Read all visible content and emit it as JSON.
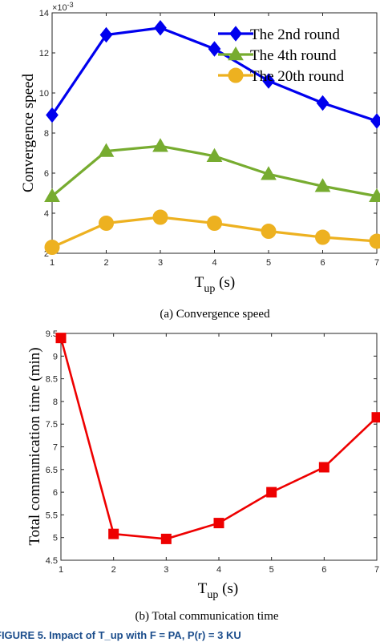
{
  "chart_data": [
    {
      "type": "line",
      "caption": "(a)  Convergence speed",
      "xlabel": "T",
      "xlabel_sub": "up",
      "xlabel_unit": " (s)",
      "ylabel": "Convergence speed",
      "y_exponent": "×10",
      "y_exponent_power": "-3",
      "x": [
        1,
        2,
        3,
        4,
        5,
        6,
        7
      ],
      "xlim": [
        1,
        7
      ],
      "ylim": [
        2,
        14
      ],
      "xticks": [
        "1",
        "2",
        "3",
        "4",
        "5",
        "6",
        "7"
      ],
      "yticks": [
        2,
        4,
        6,
        8,
        10,
        12,
        14
      ],
      "yticklabels": [
        "2",
        "4",
        "6",
        "8",
        "10",
        "12",
        "14"
      ],
      "legend_position": "top-right",
      "grid": false,
      "series": [
        {
          "name": "The 2nd round",
          "values": [
            8.9,
            12.9,
            13.25,
            12.2,
            10.6,
            9.5,
            8.6
          ],
          "color": "#0000ee",
          "marker": "diamond"
        },
        {
          "name": "The 4th round",
          "values": [
            4.85,
            7.1,
            7.35,
            6.85,
            5.95,
            5.35,
            4.85
          ],
          "color": "#77ac30",
          "marker": "triangle"
        },
        {
          "name": "The 20th round",
          "values": [
            2.3,
            3.5,
            3.8,
            3.5,
            3.1,
            2.8,
            2.6
          ],
          "color": "#edb120",
          "marker": "circle"
        }
      ]
    },
    {
      "type": "line",
      "caption": "(b)  Total communication time",
      "xlabel": "T",
      "xlabel_sub": "up",
      "xlabel_unit": " (s)",
      "ylabel": "Total communication time (min)",
      "x": [
        1,
        2,
        3,
        4,
        5,
        6,
        7
      ],
      "xlim": [
        1,
        7
      ],
      "ylim": [
        4.5,
        9.5
      ],
      "xticks": [
        "1",
        "2",
        "3",
        "4",
        "5",
        "6",
        "7"
      ],
      "yticks": [
        4.5,
        5,
        5.5,
        6,
        6.5,
        7,
        7.5,
        8,
        8.5,
        9,
        9.5
      ],
      "yticklabels": [
        "4.5",
        "5",
        "5.5",
        "6",
        "6.5",
        "7",
        "7.5",
        "8",
        "8.5",
        "9",
        "9.5"
      ],
      "grid": false,
      "series": [
        {
          "values": [
            9.4,
            5.08,
            4.97,
            5.32,
            6.0,
            6.55,
            7.65
          ],
          "color": "#ee0000",
          "marker": "square"
        }
      ]
    }
  ],
  "footer_text": "FIGURE 5. Impact of T_up with F = PA, P(r) = 3 KU"
}
